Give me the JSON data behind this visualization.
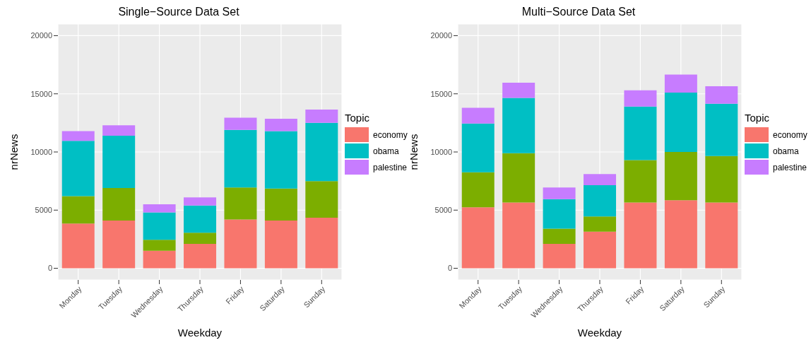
{
  "chart_data": [
    {
      "type": "bar",
      "title": "Single−Source Data Set",
      "xlabel": "Weekday",
      "ylabel": "nrNews",
      "legend_title": "Topic",
      "stacked": true,
      "legend": "right",
      "grid": true,
      "categories": [
        "Monday",
        "Tuesday",
        "Wednesday",
        "Thursday",
        "Friday",
        "Saturday",
        "Sunday"
      ],
      "ylim": [
        -1000,
        21000
      ],
      "yticks": [
        0,
        5000,
        10000,
        15000,
        20000
      ],
      "series": [
        {
          "name": "economy",
          "color": "#f8766d",
          "values": [
            3850,
            4100,
            1500,
            2100,
            4200,
            4100,
            4350
          ]
        },
        {
          "color": "#7cae00",
          "values": [
            2350,
            2800,
            950,
            950,
            2750,
            2750,
            3150
          ]
        },
        {
          "name": "obama",
          "color": "#00bfc4",
          "values": [
            4750,
            4500,
            2350,
            2350,
            4950,
            4950,
            5000
          ]
        },
        {
          "name": "palestine",
          "color": "#c77cff",
          "values": [
            850,
            900,
            700,
            700,
            1050,
            1050,
            1150
          ]
        }
      ]
    },
    {
      "type": "bar",
      "title": "Multi−Source Data Set",
      "xlabel": "Weekday",
      "ylabel": "nrNews",
      "legend_title": "Topic",
      "stacked": true,
      "legend": "right",
      "grid": true,
      "categories": [
        "Monday",
        "Tuesday",
        "Wednesday",
        "Thursday",
        "Friday",
        "Saturday",
        "Sunday"
      ],
      "ylim": [
        -1000,
        21000
      ],
      "yticks": [
        0,
        5000,
        10000,
        15000,
        20000
      ],
      "series": [
        {
          "name": "economy",
          "color": "#f8766d",
          "values": [
            5250,
            5650,
            2100,
            3150,
            5650,
            5850,
            5650
          ]
        },
        {
          "color": "#7cae00",
          "values": [
            3000,
            4250,
            1300,
            1300,
            3650,
            4150,
            4000
          ]
        },
        {
          "name": "obama",
          "color": "#00bfc4",
          "values": [
            4200,
            4750,
            2550,
            2700,
            4600,
            5100,
            4500
          ]
        },
        {
          "name": "palestine",
          "color": "#c77cff",
          "values": [
            1350,
            1300,
            1000,
            950,
            1400,
            1550,
            1500
          ]
        }
      ]
    }
  ]
}
